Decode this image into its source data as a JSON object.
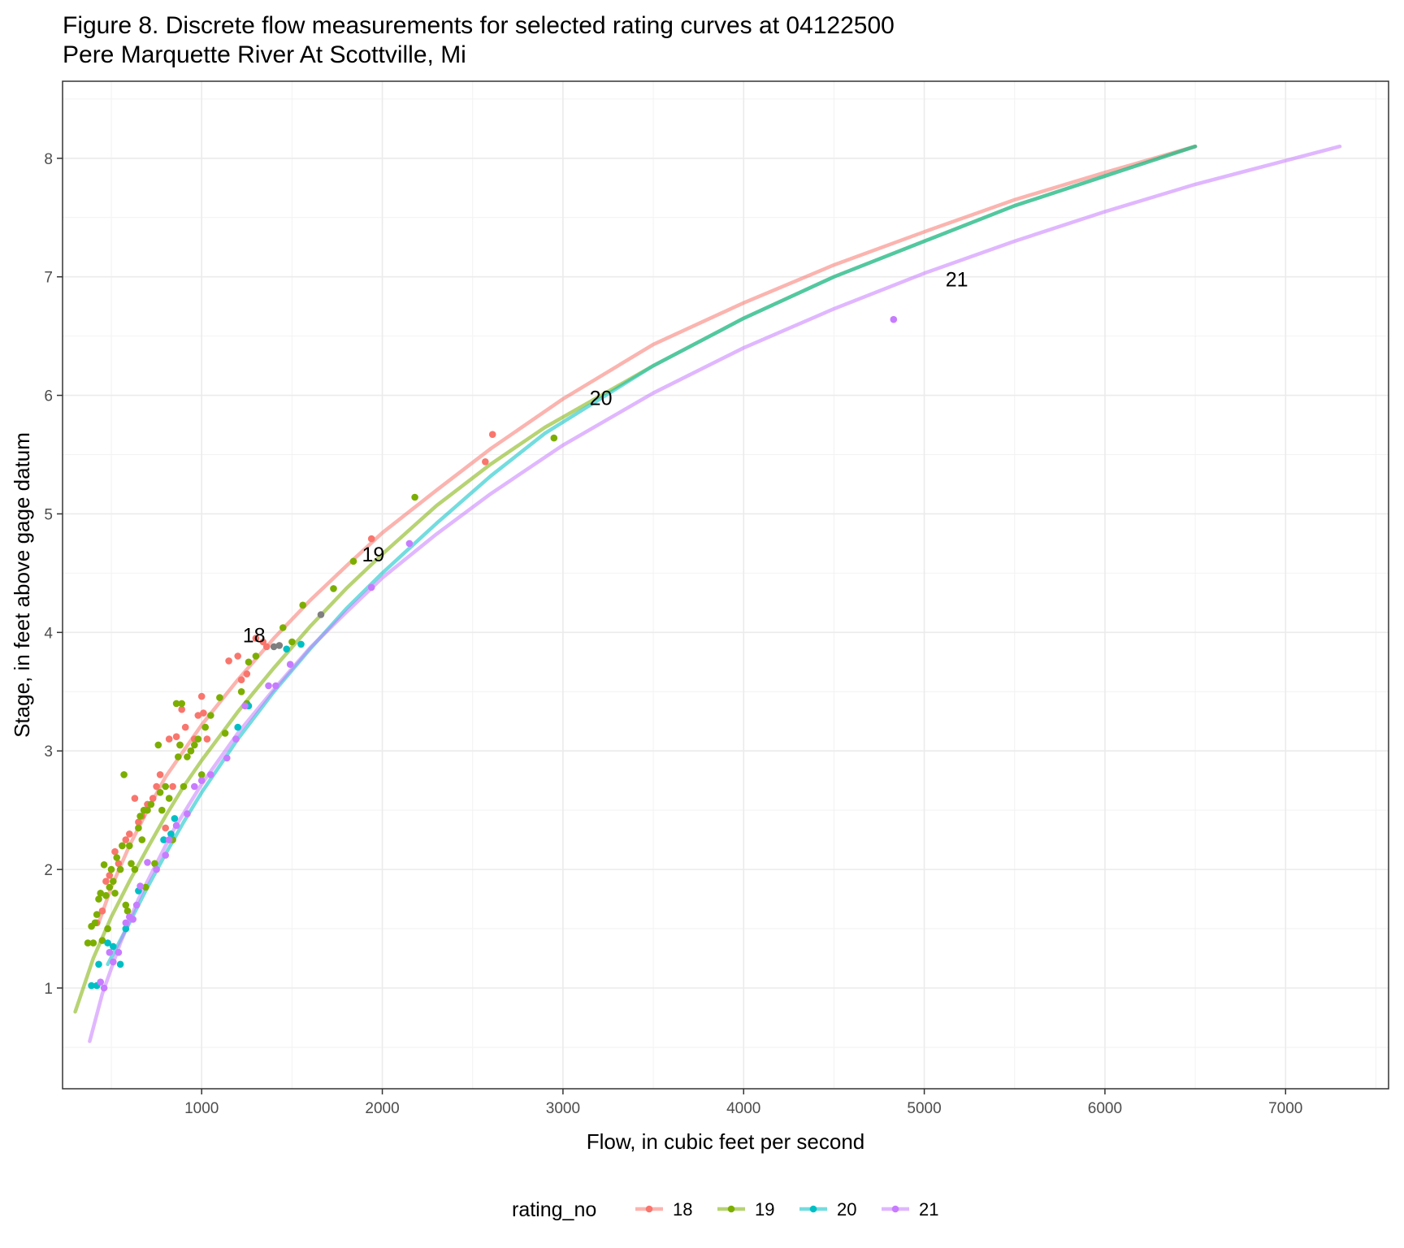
{
  "chart_data": {
    "type": "scatter",
    "title": "Figure 8. Discrete flow measurements for selected rating curves at 04122500",
    "subtitle": "Pere Marquette River At Scottville, Mi",
    "xlabel": "Flow, in cubic feet per second",
    "ylabel": "Stage, in feet above gage datum",
    "xlim": [
      230,
      7570
    ],
    "ylim": [
      0.15,
      8.65
    ],
    "x_ticks": [
      1000,
      2000,
      3000,
      4000,
      5000,
      6000,
      7000
    ],
    "y_ticks": [
      1,
      2,
      3,
      4,
      5,
      6,
      7,
      8
    ],
    "grid": true,
    "legend_title": "rating_no",
    "legend_position": "bottom",
    "series": [
      {
        "name": "18",
        "color": "#F8766D",
        "curve": [
          [
            430,
            1.55
          ],
          [
            500,
            1.85
          ],
          [
            600,
            2.2
          ],
          [
            700,
            2.5
          ],
          [
            800,
            2.78
          ],
          [
            900,
            3.0
          ],
          [
            1000,
            3.22
          ],
          [
            1200,
            3.6
          ],
          [
            1400,
            3.95
          ],
          [
            1600,
            4.27
          ],
          [
            1800,
            4.56
          ],
          [
            2000,
            4.84
          ],
          [
            2300,
            5.2
          ],
          [
            2600,
            5.55
          ],
          [
            3000,
            5.97
          ],
          [
            3500,
            6.43
          ],
          [
            4000,
            6.78
          ],
          [
            4500,
            7.1
          ],
          [
            5000,
            7.38
          ],
          [
            5500,
            7.65
          ],
          [
            6000,
            7.88
          ],
          [
            6500,
            8.1
          ]
        ],
        "points": [
          [
            420,
            1.55
          ],
          [
            450,
            1.65
          ],
          [
            470,
            1.9
          ],
          [
            490,
            1.95
          ],
          [
            520,
            2.15
          ],
          [
            540,
            2.05
          ],
          [
            560,
            2.2
          ],
          [
            580,
            2.25
          ],
          [
            600,
            2.3
          ],
          [
            630,
            2.6
          ],
          [
            650,
            2.4
          ],
          [
            670,
            2.45
          ],
          [
            700,
            2.55
          ],
          [
            730,
            2.6
          ],
          [
            750,
            2.7
          ],
          [
            770,
            2.8
          ],
          [
            800,
            2.35
          ],
          [
            820,
            3.1
          ],
          [
            840,
            2.7
          ],
          [
            860,
            3.12
          ],
          [
            880,
            3.05
          ],
          [
            890,
            3.35
          ],
          [
            910,
            3.2
          ],
          [
            940,
            3.0
          ],
          [
            960,
            3.1
          ],
          [
            980,
            3.3
          ],
          [
            1000,
            3.46
          ],
          [
            1010,
            3.32
          ],
          [
            1030,
            3.1
          ],
          [
            1150,
            3.76
          ],
          [
            1200,
            3.8
          ],
          [
            1220,
            3.6
          ],
          [
            1250,
            3.65
          ],
          [
            1300,
            3.95
          ],
          [
            1340,
            3.92
          ],
          [
            1360,
            3.88
          ],
          [
            1940,
            4.79
          ],
          [
            2570,
            5.44
          ],
          [
            2610,
            5.67
          ]
        ],
        "label": "18",
        "label_at": [
          1290,
          3.98
        ]
      },
      {
        "name": "19",
        "color": "#7CAE00",
        "curve": [
          [
            300,
            0.8
          ],
          [
            400,
            1.25
          ],
          [
            500,
            1.6
          ],
          [
            600,
            1.9
          ],
          [
            700,
            2.18
          ],
          [
            800,
            2.45
          ],
          [
            900,
            2.7
          ],
          [
            1000,
            2.92
          ],
          [
            1200,
            3.33
          ],
          [
            1400,
            3.7
          ],
          [
            1600,
            4.05
          ],
          [
            1800,
            4.37
          ],
          [
            2000,
            4.66
          ],
          [
            2300,
            5.07
          ],
          [
            2600,
            5.42
          ],
          [
            2900,
            5.73
          ],
          [
            3500,
            6.25
          ],
          [
            4000,
            6.65
          ],
          [
            4500,
            7.0
          ],
          [
            5000,
            7.3
          ],
          [
            5500,
            7.6
          ],
          [
            6000,
            7.85
          ],
          [
            6500,
            8.1
          ]
        ],
        "points": [
          [
            370,
            1.38
          ],
          [
            390,
            1.52
          ],
          [
            400,
            1.38
          ],
          [
            410,
            1.55
          ],
          [
            420,
            1.62
          ],
          [
            430,
            1.75
          ],
          [
            440,
            1.8
          ],
          [
            450,
            1.4
          ],
          [
            460,
            2.04
          ],
          [
            470,
            1.78
          ],
          [
            480,
            1.5
          ],
          [
            490,
            1.85
          ],
          [
            500,
            2.0
          ],
          [
            510,
            1.9
          ],
          [
            520,
            1.8
          ],
          [
            530,
            2.1
          ],
          [
            550,
            2.0
          ],
          [
            560,
            2.2
          ],
          [
            570,
            2.8
          ],
          [
            580,
            1.7
          ],
          [
            590,
            1.65
          ],
          [
            600,
            2.2
          ],
          [
            610,
            2.05
          ],
          [
            630,
            2.0
          ],
          [
            650,
            2.35
          ],
          [
            660,
            2.45
          ],
          [
            670,
            2.25
          ],
          [
            680,
            2.5
          ],
          [
            690,
            1.85
          ],
          [
            700,
            2.5
          ],
          [
            720,
            2.55
          ],
          [
            740,
            2.05
          ],
          [
            760,
            3.05
          ],
          [
            770,
            2.65
          ],
          [
            780,
            2.5
          ],
          [
            800,
            2.7
          ],
          [
            820,
            2.6
          ],
          [
            840,
            2.25
          ],
          [
            860,
            3.4
          ],
          [
            870,
            2.95
          ],
          [
            880,
            3.05
          ],
          [
            890,
            3.4
          ],
          [
            900,
            2.7
          ],
          [
            920,
            2.95
          ],
          [
            940,
            3.0
          ],
          [
            960,
            3.05
          ],
          [
            980,
            3.1
          ],
          [
            1000,
            2.8
          ],
          [
            1020,
            3.2
          ],
          [
            1050,
            3.3
          ],
          [
            1100,
            3.45
          ],
          [
            1130,
            3.15
          ],
          [
            1220,
            3.5
          ],
          [
            1250,
            3.4
          ],
          [
            1260,
            3.75
          ],
          [
            1300,
            3.8
          ],
          [
            1450,
            4.04
          ],
          [
            1500,
            3.92
          ],
          [
            1560,
            4.23
          ],
          [
            1730,
            4.37
          ],
          [
            1840,
            4.6
          ],
          [
            2180,
            5.14
          ],
          [
            2950,
            5.64
          ]
        ],
        "label": "19",
        "label_at": [
          1950,
          4.66
        ]
      },
      {
        "name": "20",
        "color": "#00BFC4",
        "curve": [
          [
            480,
            1.2
          ],
          [
            600,
            1.55
          ],
          [
            700,
            1.85
          ],
          [
            800,
            2.13
          ],
          [
            900,
            2.4
          ],
          [
            1000,
            2.65
          ],
          [
            1200,
            3.1
          ],
          [
            1400,
            3.5
          ],
          [
            1600,
            3.86
          ],
          [
            1800,
            4.2
          ],
          [
            2000,
            4.5
          ],
          [
            2300,
            4.92
          ],
          [
            2600,
            5.32
          ],
          [
            2900,
            5.68
          ],
          [
            3500,
            6.25
          ],
          [
            4000,
            6.65
          ],
          [
            4500,
            7.0
          ],
          [
            5000,
            7.3
          ],
          [
            5500,
            7.6
          ],
          [
            6000,
            7.85
          ],
          [
            6500,
            8.1
          ]
        ],
        "points": [
          [
            390,
            1.02
          ],
          [
            420,
            1.02
          ],
          [
            430,
            1.2
          ],
          [
            480,
            1.38
          ],
          [
            510,
            1.35
          ],
          [
            550,
            1.2
          ],
          [
            580,
            1.5
          ],
          [
            650,
            1.82
          ],
          [
            790,
            2.25
          ],
          [
            830,
            2.3
          ],
          [
            850,
            2.43
          ],
          [
            1200,
            3.2
          ],
          [
            1260,
            3.38
          ],
          [
            1470,
            3.86
          ],
          [
            1550,
            3.9
          ]
        ],
        "label": "20",
        "label_at": [
          3210,
          5.98
        ]
      },
      {
        "name": "21",
        "color": "#C77CFF",
        "curve": [
          [
            380,
            0.55
          ],
          [
            450,
            0.95
          ],
          [
            550,
            1.38
          ],
          [
            650,
            1.75
          ],
          [
            750,
            2.05
          ],
          [
            850,
            2.35
          ],
          [
            1000,
            2.72
          ],
          [
            1200,
            3.15
          ],
          [
            1400,
            3.52
          ],
          [
            1600,
            3.87
          ],
          [
            1800,
            4.17
          ],
          [
            2000,
            4.46
          ],
          [
            2300,
            4.83
          ],
          [
            2600,
            5.17
          ],
          [
            3000,
            5.58
          ],
          [
            3500,
            6.02
          ],
          [
            4000,
            6.4
          ],
          [
            4500,
            6.73
          ],
          [
            5000,
            7.03
          ],
          [
            5500,
            7.3
          ],
          [
            6000,
            7.55
          ],
          [
            6500,
            7.78
          ],
          [
            7000,
            7.98
          ],
          [
            7300,
            8.1
          ]
        ],
        "points": [
          [
            440,
            1.05
          ],
          [
            460,
            1.0
          ],
          [
            490,
            1.3
          ],
          [
            510,
            1.22
          ],
          [
            540,
            1.3
          ],
          [
            580,
            1.55
          ],
          [
            600,
            1.6
          ],
          [
            620,
            1.58
          ],
          [
            640,
            1.7
          ],
          [
            660,
            1.86
          ],
          [
            700,
            2.06
          ],
          [
            750,
            2.0
          ],
          [
            800,
            2.12
          ],
          [
            820,
            2.25
          ],
          [
            860,
            2.37
          ],
          [
            920,
            2.47
          ],
          [
            960,
            2.7
          ],
          [
            1000,
            2.75
          ],
          [
            1050,
            2.8
          ],
          [
            1140,
            2.94
          ],
          [
            1190,
            3.1
          ],
          [
            1240,
            3.38
          ],
          [
            1370,
            3.55
          ],
          [
            1410,
            3.55
          ],
          [
            1490,
            3.73
          ],
          [
            1940,
            4.38
          ],
          [
            2150,
            4.75
          ],
          [
            4830,
            6.64
          ]
        ],
        "label": "21",
        "label_at": [
          5180,
          6.98
        ]
      }
    ],
    "unassigned_points": {
      "color": "#7F7F7F",
      "points": [
        [
          1400,
          3.88
        ],
        [
          1430,
          3.89
        ],
        [
          1660,
          4.15
        ]
      ]
    }
  }
}
